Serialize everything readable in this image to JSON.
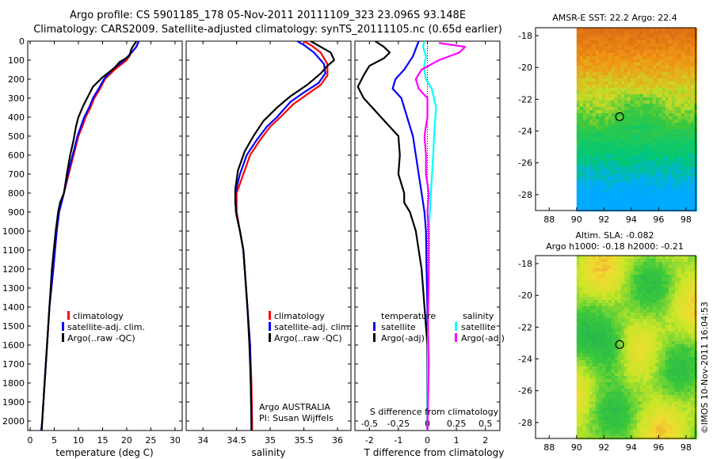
{
  "header": {
    "line1": "Argo profile: CS 5901185_178 05-Nov-2011 20111109_323 23.096S 93.148E",
    "line2": "Climatology: CARS2009. Satellite-adjusted climatology: synTS_20111105.nc (0.65d earlier)"
  },
  "colors": {
    "climatology": "#ff0000",
    "satellite": "#0000ff",
    "argo": "#000000",
    "t_satellite": "#0000ff",
    "s_satellite": "#00ffff",
    "s_argo": "#ff00ff"
  },
  "panels": {
    "temperature": {
      "xlabel": "temperature (deg C)",
      "legend": [
        "climatology",
        "satellite-adj. clim.",
        "Argo(..raw -QC)"
      ]
    },
    "salinity": {
      "xlabel": "salinity",
      "legend": [
        "climatology",
        "satellite-adj. clim.",
        "Argo(..raw -QC)"
      ],
      "note1": "Argo AUSTRALIA",
      "note2": "PI: Susan Wijffels"
    },
    "difference": {
      "xlabel": "T difference from climatology",
      "top_label": "S difference from climatology",
      "legend_t_title": "temperature",
      "legend_s_title": "salinity",
      "legend_t": [
        "satellite",
        "Argo(-adj)"
      ],
      "legend_s": [
        "satellite",
        "Argo(-adj)"
      ]
    },
    "sst_map": {
      "title": "AMSR-E SST: 22.2 Argo: 22.4"
    },
    "sla_map": {
      "title1": "Altim. SLA: -0.082",
      "title2": "Argo h1000: -0.18 h2000: -0.21"
    },
    "credit": "©IMOS 10-Nov-2011 16:04:53"
  },
  "chart_data": [
    {
      "id": "temperature",
      "type": "line",
      "xlabel": "temperature (deg C)",
      "ylabel": "",
      "xlim": [
        -0.5,
        31.5
      ],
      "ylim": [
        0,
        2050
      ],
      "xticks": [
        0,
        5,
        10,
        15,
        20,
        25,
        30
      ],
      "yticks": [
        0,
        100,
        200,
        300,
        400,
        500,
        600,
        700,
        800,
        900,
        1000,
        1100,
        1200,
        1300,
        1400,
        1500,
        1600,
        1700,
        1800,
        1900,
        2000
      ],
      "y_reversed": true,
      "series": [
        {
          "name": "climatology",
          "color_key": "climatology",
          "points": [
            [
              22.5,
              0
            ],
            [
              22,
              30
            ],
            [
              21,
              60
            ],
            [
              20,
              100
            ],
            [
              17.5,
              150
            ],
            [
              15.5,
              200
            ],
            [
              14.5,
              250
            ],
            [
              13.3,
              300
            ],
            [
              12.5,
              350
            ],
            [
              11.5,
              400
            ],
            [
              10.8,
              450
            ],
            [
              10,
              500
            ],
            [
              9,
              600
            ],
            [
              8,
              700
            ],
            [
              7,
              800
            ],
            [
              6,
              900
            ],
            [
              5.5,
              1000
            ],
            [
              4.8,
              1200
            ],
            [
              4,
              1400
            ],
            [
              3.5,
              1600
            ],
            [
              3,
              1800
            ],
            [
              2.5,
              2000
            ],
            [
              2.3,
              2050
            ]
          ]
        },
        {
          "name": "satellite-adj. clim.",
          "color_key": "satellite",
          "points": [
            [
              22.5,
              0
            ],
            [
              22,
              30
            ],
            [
              21,
              60
            ],
            [
              19.5,
              100
            ],
            [
              17,
              150
            ],
            [
              15.3,
              200
            ],
            [
              14.2,
              250
            ],
            [
              13,
              300
            ],
            [
              12.2,
              350
            ],
            [
              11.2,
              400
            ],
            [
              10.5,
              450
            ],
            [
              9.8,
              500
            ],
            [
              8.8,
              600
            ],
            [
              7.8,
              700
            ],
            [
              7,
              800
            ],
            [
              6,
              900
            ],
            [
              5.5,
              1000
            ],
            [
              4.8,
              1200
            ],
            [
              4,
              1400
            ],
            [
              3.5,
              1600
            ],
            [
              3,
              1800
            ],
            [
              2.5,
              2000
            ],
            [
              2.3,
              2050
            ]
          ]
        },
        {
          "name": "Argo(..raw -QC)",
          "color_key": "argo",
          "points": [
            [
              22,
              0
            ],
            [
              21,
              40
            ],
            [
              20.5,
              80
            ],
            [
              18.5,
              110
            ],
            [
              17.5,
              140
            ],
            [
              15,
              190
            ],
            [
              13,
              240
            ],
            [
              12,
              290
            ],
            [
              11,
              340
            ],
            [
              10,
              400
            ],
            [
              9.5,
              450
            ],
            [
              9,
              520
            ],
            [
              8.3,
              600
            ],
            [
              7.6,
              700
            ],
            [
              7,
              800
            ],
            [
              6.2,
              850
            ],
            [
              5.8,
              900
            ],
            [
              5.3,
              1000
            ],
            [
              4.5,
              1200
            ],
            [
              4,
              1400
            ],
            [
              3.5,
              1600
            ],
            [
              3,
              1800
            ],
            [
              2.5,
              2000
            ],
            [
              2.4,
              2050
            ]
          ]
        }
      ],
      "legend": [
        "climatology",
        "satellite-adj. clim.",
        "Argo(..raw -QC)"
      ]
    },
    {
      "id": "salinity",
      "type": "line",
      "xlabel": "salinity",
      "ylabel": "",
      "xlim": [
        33.75,
        36.2
      ],
      "ylim": [
        0,
        2050
      ],
      "xticks": [
        34,
        34.5,
        35,
        35.5,
        36
      ],
      "y_reversed": true,
      "series": [
        {
          "name": "climatology",
          "color_key": "climatology",
          "points": [
            [
              35.5,
              0
            ],
            [
              35.6,
              20
            ],
            [
              35.75,
              60
            ],
            [
              35.85,
              120
            ],
            [
              35.85,
              180
            ],
            [
              35.75,
              230
            ],
            [
              35.55,
              280
            ],
            [
              35.35,
              330
            ],
            [
              35.15,
              400
            ],
            [
              35,
              450
            ],
            [
              34.85,
              520
            ],
            [
              34.7,
              600
            ],
            [
              34.6,
              700
            ],
            [
              34.5,
              800
            ],
            [
              34.5,
              900
            ],
            [
              34.55,
              1000
            ],
            [
              34.6,
              1100
            ],
            [
              34.62,
              1200
            ],
            [
              34.66,
              1400
            ],
            [
              34.7,
              1600
            ],
            [
              34.72,
              1800
            ],
            [
              34.73,
              2000
            ],
            [
              34.73,
              2050
            ]
          ]
        },
        {
          "name": "satellite-adj. clim.",
          "color_key": "satellite",
          "points": [
            [
              35.4,
              0
            ],
            [
              35.5,
              20
            ],
            [
              35.65,
              60
            ],
            [
              35.8,
              120
            ],
            [
              35.82,
              170
            ],
            [
              35.72,
              220
            ],
            [
              35.5,
              270
            ],
            [
              35.3,
              320
            ],
            [
              35.1,
              400
            ],
            [
              34.95,
              450
            ],
            [
              34.8,
              520
            ],
            [
              34.65,
              600
            ],
            [
              34.55,
              700
            ],
            [
              34.48,
              800
            ],
            [
              34.49,
              900
            ],
            [
              34.55,
              1000
            ],
            [
              34.6,
              1100
            ],
            [
              34.62,
              1200
            ],
            [
              34.66,
              1400
            ],
            [
              34.7,
              1600
            ],
            [
              34.71,
              1800
            ],
            [
              34.72,
              2000
            ],
            [
              34.72,
              2050
            ]
          ]
        },
        {
          "name": "Argo(..raw -QC)",
          "color_key": "argo",
          "points": [
            [
              35.6,
              0
            ],
            [
              35.7,
              20
            ],
            [
              35.9,
              60
            ],
            [
              35.95,
              100
            ],
            [
              35.85,
              130
            ],
            [
              35.75,
              170
            ],
            [
              35.55,
              230
            ],
            [
              35.3,
              290
            ],
            [
              35.1,
              350
            ],
            [
              34.9,
              420
            ],
            [
              34.75,
              500
            ],
            [
              34.62,
              580
            ],
            [
              34.52,
              680
            ],
            [
              34.48,
              780
            ],
            [
              34.48,
              850
            ],
            [
              34.5,
              920
            ],
            [
              34.55,
              1000
            ],
            [
              34.6,
              1100
            ],
            [
              34.62,
              1200
            ],
            [
              34.66,
              1400
            ],
            [
              34.69,
              1600
            ],
            [
              34.71,
              1800
            ],
            [
              34.72,
              2000
            ],
            [
              34.72,
              2050
            ]
          ]
        }
      ],
      "legend": [
        "climatology",
        "satellite-adj. clim.",
        "Argo(..raw -QC)"
      ]
    },
    {
      "id": "difference",
      "type": "line",
      "xlabel": "T difference from climatology",
      "ylabel": "",
      "xlim": [
        -2.5,
        2.5
      ],
      "ylim": [
        0,
        2050
      ],
      "xticks": [
        -2,
        -1,
        0,
        1,
        2
      ],
      "secondary_xlabel": "S difference from climatology",
      "secondary_xticks": [
        -0.5,
        -0.25,
        0,
        0.25,
        0.5
      ],
      "y_reversed": true,
      "series": [
        {
          "name": "temperature satellite",
          "color_key": "t_satellite",
          "points": [
            [
              -0.3,
              0
            ],
            [
              -0.5,
              80
            ],
            [
              -0.8,
              150
            ],
            [
              -1.1,
              200
            ],
            [
              -1.2,
              250
            ],
            [
              -0.9,
              300
            ],
            [
              -0.7,
              400
            ],
            [
              -0.5,
              500
            ],
            [
              -0.4,
              600
            ],
            [
              -0.3,
              700
            ],
            [
              -0.2,
              800
            ],
            [
              -0.1,
              900
            ],
            [
              -0.05,
              1000
            ],
            [
              -0.03,
              1200
            ],
            [
              0,
              1400
            ],
            [
              0,
              2050
            ]
          ]
        },
        {
          "name": "temperature Argo(-adj)",
          "color_key": "argo",
          "points": [
            [
              -1.8,
              0
            ],
            [
              -1.5,
              30
            ],
            [
              -1.3,
              60
            ],
            [
              -1.5,
              90
            ],
            [
              -2,
              130
            ],
            [
              -2.2,
              180
            ],
            [
              -2.4,
              240
            ],
            [
              -2.2,
              300
            ],
            [
              -1.9,
              350
            ],
            [
              -1.6,
              400
            ],
            [
              -1.3,
              450
            ],
            [
              -1,
              500
            ],
            [
              -0.95,
              600
            ],
            [
              -1,
              700
            ],
            [
              -0.8,
              800
            ],
            [
              -0.8,
              850
            ],
            [
              -0.6,
              900
            ],
            [
              -0.4,
              1000
            ],
            [
              -0.3,
              1100
            ],
            [
              -0.2,
              1200
            ],
            [
              -0.1,
              1400
            ],
            [
              0,
              1600
            ],
            [
              0,
              2050
            ]
          ]
        },
        {
          "name": "salinity satellite",
          "color_key": "s_satellite",
          "points": [
            [
              -0.1,
              0
            ],
            [
              -0.15,
              30
            ],
            [
              -0.05,
              80
            ],
            [
              -0.12,
              140
            ],
            [
              -0.05,
              200
            ],
            [
              0.15,
              250
            ],
            [
              0.3,
              350
            ],
            [
              0.25,
              450
            ],
            [
              0.2,
              600
            ],
            [
              0.12,
              800
            ],
            [
              0.05,
              1000
            ],
            [
              0.05,
              1200
            ],
            [
              0.02,
              1500
            ],
            [
              0,
              2050
            ]
          ]
        },
        {
          "name": "salinity Argo(-adj)",
          "color_key": "s_argo",
          "points": [
            [
              0.4,
              10
            ],
            [
              1.3,
              30
            ],
            [
              1.1,
              60
            ],
            [
              0.4,
              100
            ],
            [
              -0.2,
              150
            ],
            [
              -0.4,
              200
            ],
            [
              -0.3,
              250
            ],
            [
              0,
              300
            ],
            [
              0,
              400
            ],
            [
              -0.1,
              500
            ],
            [
              -0.05,
              600
            ],
            [
              -0.05,
              700
            ],
            [
              0.05,
              800
            ],
            [
              0,
              900
            ],
            [
              0.05,
              1000
            ],
            [
              0.05,
              1200
            ],
            [
              0.02,
              1500
            ],
            [
              0.05,
              1700
            ],
            [
              0,
              2050
            ]
          ]
        }
      ],
      "legend": [
        "satellite",
        "Argo(-adj)",
        "satellite",
        "Argo(-adj)"
      ]
    },
    {
      "id": "sst_map",
      "type": "heatmap",
      "title": "AMSR-E SST: 22.2 Argo: 22.4",
      "xlim": [
        87,
        98.7
      ],
      "ylim": [
        -29,
        -17.5
      ],
      "xticks": [
        88,
        90,
        92,
        94,
        96,
        98
      ],
      "yticks": [
        -18,
        -20,
        -22,
        -24,
        -26,
        -28
      ],
      "data_x_start": 90,
      "argo_position": [
        93.148,
        -23.096
      ]
    },
    {
      "id": "sla_map",
      "type": "heatmap",
      "title": "Altim. SLA: -0.082 / Argo h1000: -0.18 h2000: -0.21",
      "xlim": [
        87,
        98.7
      ],
      "ylim": [
        -29,
        -17.5
      ],
      "xticks": [
        88,
        90,
        92,
        94,
        96,
        98
      ],
      "yticks": [
        -18,
        -20,
        -22,
        -24,
        -26,
        -28
      ],
      "data_x_start": 90,
      "argo_position": [
        93.148,
        -23.096
      ]
    }
  ]
}
